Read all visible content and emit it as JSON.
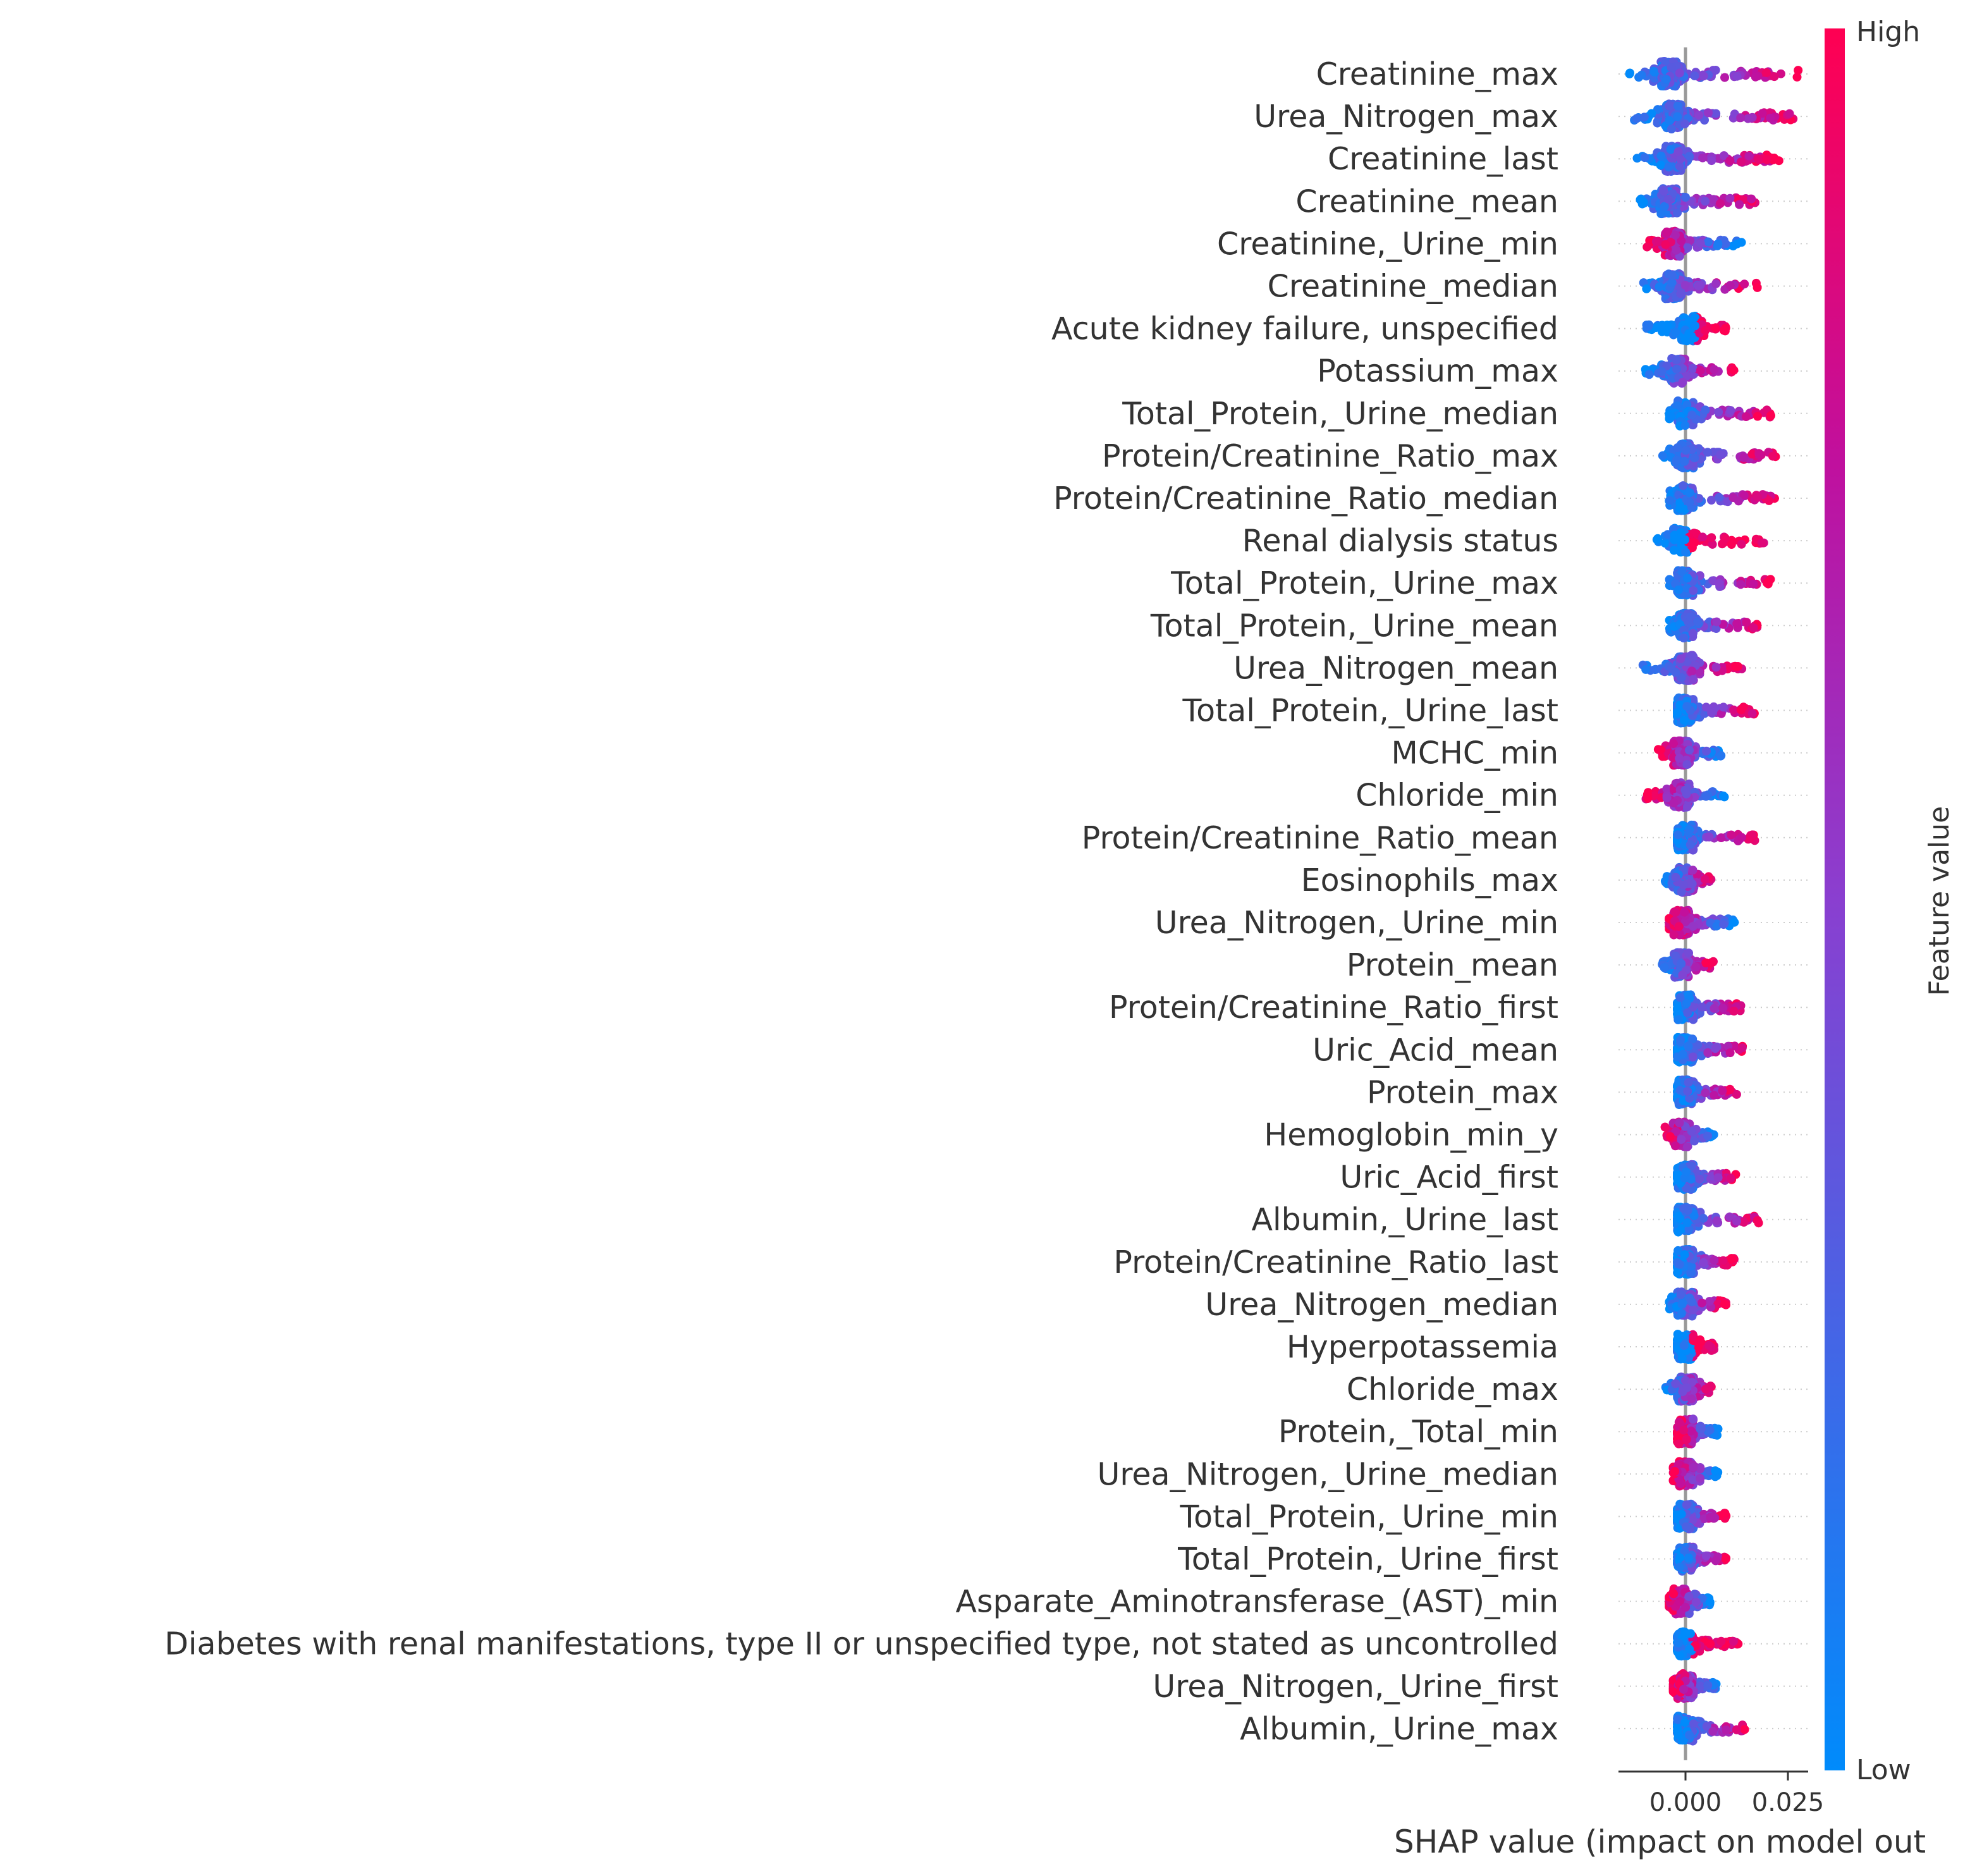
{
  "chart_data": {
    "type": "scatter",
    "subtype": "shap-beeswarm",
    "title": "",
    "xlabel": "SHAP value (impact on model out",
    "xlim": [
      -0.018,
      0.031
    ],
    "xticks": [
      0.0,
      0.025
    ],
    "xtick_labels": [
      "0.000",
      "0.025"
    ],
    "colorbar": {
      "label": "Feature value",
      "high_label": "High",
      "low_label": "Low",
      "low_color": "#008bfb",
      "high_color": "#ff0052"
    },
    "features": [
      {
        "name": "Creatinine_max",
        "min": -0.015,
        "max": 0.029,
        "center": -0.004,
        "style": "wide",
        "low_side": "left"
      },
      {
        "name": "Urea_Nitrogen_max",
        "min": -0.013,
        "max": 0.027,
        "center": -0.003,
        "style": "wide",
        "low_side": "left"
      },
      {
        "name": "Creatinine_last",
        "min": -0.012,
        "max": 0.023,
        "center": -0.003,
        "style": "wide",
        "low_side": "left"
      },
      {
        "name": "Creatinine_mean",
        "min": -0.012,
        "max": 0.019,
        "center": -0.004,
        "style": "wide",
        "low_side": "left"
      },
      {
        "name": "Creatinine,_Urine_min",
        "min": -0.01,
        "max": 0.014,
        "center": -0.003,
        "style": "normal",
        "low_side": "right"
      },
      {
        "name": "Creatinine_median",
        "min": -0.011,
        "max": 0.018,
        "center": -0.003,
        "style": "normal",
        "low_side": "left"
      },
      {
        "name": "Acute kidney failure, unspecified",
        "min": -0.01,
        "max": 0.01,
        "center": 0.001,
        "style": "binary",
        "low_side": "left"
      },
      {
        "name": "Potassium_max",
        "min": -0.01,
        "max": 0.012,
        "center": -0.002,
        "style": "normal",
        "low_side": "left"
      },
      {
        "name": "Total_Protein,_Urine_median",
        "min": -0.004,
        "max": 0.021,
        "center": 0.0,
        "style": "normal",
        "low_side": "left"
      },
      {
        "name": "Protein/Creatinine_Ratio_max",
        "min": -0.006,
        "max": 0.022,
        "center": 0.0,
        "style": "normal",
        "low_side": "left"
      },
      {
        "name": "Protein/Creatinine_Ratio_median",
        "min": -0.004,
        "max": 0.022,
        "center": 0.0,
        "style": "normal",
        "low_side": "left"
      },
      {
        "name": "Renal dialysis status",
        "min": -0.007,
        "max": 0.021,
        "center": -0.001,
        "style": "binary",
        "low_side": "left"
      },
      {
        "name": "Total_Protein,_Urine_max",
        "min": -0.004,
        "max": 0.021,
        "center": 0.0,
        "style": "normal",
        "low_side": "left"
      },
      {
        "name": "Total_Protein,_Urine_mean",
        "min": -0.004,
        "max": 0.019,
        "center": 0.0,
        "style": "normal",
        "low_side": "left"
      },
      {
        "name": "Urea_Nitrogen_mean",
        "min": -0.011,
        "max": 0.014,
        "center": 0.0,
        "style": "normal",
        "low_side": "left"
      },
      {
        "name": "Total_Protein,_Urine_last",
        "min": -0.002,
        "max": 0.017,
        "center": 0.0,
        "style": "normal",
        "low_side": "left"
      },
      {
        "name": "MCHC_min",
        "min": -0.007,
        "max": 0.009,
        "center": -0.001,
        "style": "normal",
        "low_side": "right"
      },
      {
        "name": "Chloride_min",
        "min": -0.01,
        "max": 0.01,
        "center": -0.001,
        "style": "normal",
        "low_side": "right"
      },
      {
        "name": "Protein/Creatinine_Ratio_mean",
        "min": -0.002,
        "max": 0.017,
        "center": 0.0,
        "style": "normal",
        "low_side": "left"
      },
      {
        "name": "Eosinophils_max",
        "min": -0.005,
        "max": 0.007,
        "center": 0.0,
        "style": "normal",
        "low_side": "left"
      },
      {
        "name": "Urea_Nitrogen,_Urine_min",
        "min": -0.004,
        "max": 0.012,
        "center": -0.001,
        "style": "normal",
        "low_side": "right"
      },
      {
        "name": "Protein_mean",
        "min": -0.006,
        "max": 0.007,
        "center": -0.001,
        "style": "normal",
        "low_side": "left"
      },
      {
        "name": "Protein/Creatinine_Ratio_first",
        "min": -0.002,
        "max": 0.014,
        "center": 0.0,
        "style": "normal",
        "low_side": "left"
      },
      {
        "name": "Uric_Acid_mean",
        "min": -0.002,
        "max": 0.014,
        "center": 0.0,
        "style": "normal",
        "low_side": "left"
      },
      {
        "name": "Protein_max",
        "min": -0.002,
        "max": 0.013,
        "center": 0.0,
        "style": "normal",
        "low_side": "left"
      },
      {
        "name": "Hemoglobin_min_y",
        "min": -0.005,
        "max": 0.007,
        "center": -0.001,
        "style": "normal",
        "low_side": "right"
      },
      {
        "name": "Uric_Acid_first",
        "min": -0.002,
        "max": 0.013,
        "center": 0.0,
        "style": "normal",
        "low_side": "left"
      },
      {
        "name": "Albumin,_Urine_last",
        "min": -0.002,
        "max": 0.018,
        "center": 0.0,
        "style": "normal",
        "low_side": "left"
      },
      {
        "name": "Protein/Creatinine_Ratio_last",
        "min": -0.002,
        "max": 0.012,
        "center": 0.0,
        "style": "normal",
        "low_side": "left"
      },
      {
        "name": "Urea_Nitrogen_median",
        "min": -0.004,
        "max": 0.01,
        "center": 0.0,
        "style": "normal",
        "low_side": "left"
      },
      {
        "name": "Hyperpotassemia",
        "min": -0.002,
        "max": 0.007,
        "center": 0.0,
        "style": "binary",
        "low_side": "left"
      },
      {
        "name": "Chloride_max",
        "min": -0.005,
        "max": 0.007,
        "center": 0.0,
        "style": "normal",
        "low_side": "left"
      },
      {
        "name": "Protein,_Total_min",
        "min": -0.002,
        "max": 0.008,
        "center": 0.0,
        "style": "normal",
        "low_side": "right"
      },
      {
        "name": "Urea_Nitrogen,_Urine_median",
        "min": -0.003,
        "max": 0.008,
        "center": 0.0,
        "style": "normal",
        "low_side": "right"
      },
      {
        "name": "Total_Protein,_Urine_min",
        "min": -0.002,
        "max": 0.01,
        "center": 0.0,
        "style": "normal",
        "low_side": "left"
      },
      {
        "name": "Total_Protein,_Urine_first",
        "min": -0.002,
        "max": 0.01,
        "center": 0.0,
        "style": "normal",
        "low_side": "left"
      },
      {
        "name": "Asparate_Aminotransferase_(AST)_min",
        "min": -0.004,
        "max": 0.006,
        "center": -0.001,
        "style": "normal",
        "low_side": "right"
      },
      {
        "name": "Diabetes with renal manifestations, type II or unspecified type, not stated as uncontrolled",
        "min": -0.002,
        "max": 0.013,
        "center": 0.0,
        "style": "binary",
        "low_side": "left"
      },
      {
        "name": "Urea_Nitrogen,_Urine_first",
        "min": -0.003,
        "max": 0.008,
        "center": 0.0,
        "style": "normal",
        "low_side": "right"
      },
      {
        "name": "Albumin,_Urine_max",
        "min": -0.002,
        "max": 0.015,
        "center": 0.0,
        "style": "normal",
        "low_side": "left"
      }
    ]
  }
}
